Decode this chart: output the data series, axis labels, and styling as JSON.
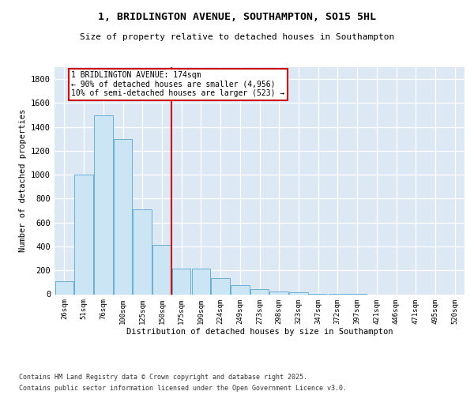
{
  "title_line1": "1, BRIDLINGTON AVENUE, SOUTHAMPTON, SO15 5HL",
  "title_line2": "Size of property relative to detached houses in Southampton",
  "xlabel": "Distribution of detached houses by size in Southampton",
  "ylabel": "Number of detached properties",
  "categories": [
    "26sqm",
    "51sqm",
    "76sqm",
    "100sqm",
    "125sqm",
    "150sqm",
    "175sqm",
    "199sqm",
    "224sqm",
    "249sqm",
    "273sqm",
    "298sqm",
    "323sqm",
    "347sqm",
    "372sqm",
    "397sqm",
    "421sqm",
    "446sqm",
    "471sqm",
    "495sqm",
    "520sqm"
  ],
  "values": [
    110,
    1000,
    1500,
    1300,
    710,
    410,
    215,
    215,
    135,
    75,
    40,
    25,
    15,
    5,
    5,
    3,
    0,
    0,
    0,
    0,
    0
  ],
  "bar_color": "#cce5f5",
  "bar_edge_color": "#6aafd6",
  "red_line_x": 5.5,
  "annotation_text": "1 BRIDLINGTON AVENUE: 174sqm\n← 90% of detached houses are smaller (4,956)\n10% of semi-detached houses are larger (523) →",
  "annotation_box_color": "#ffffff",
  "annotation_box_edge_color": "#cc0000",
  "footnote_line1": "Contains HM Land Registry data © Crown copyright and database right 2025.",
  "footnote_line2": "Contains public sector information licensed under the Open Government Licence v3.0.",
  "background_color": "#dde8f5",
  "ylim": [
    0,
    1900
  ],
  "yticks": [
    0,
    200,
    400,
    600,
    800,
    1000,
    1200,
    1400,
    1600,
    1800
  ],
  "figwidth": 6.0,
  "figheight": 5.0,
  "dpi": 100
}
